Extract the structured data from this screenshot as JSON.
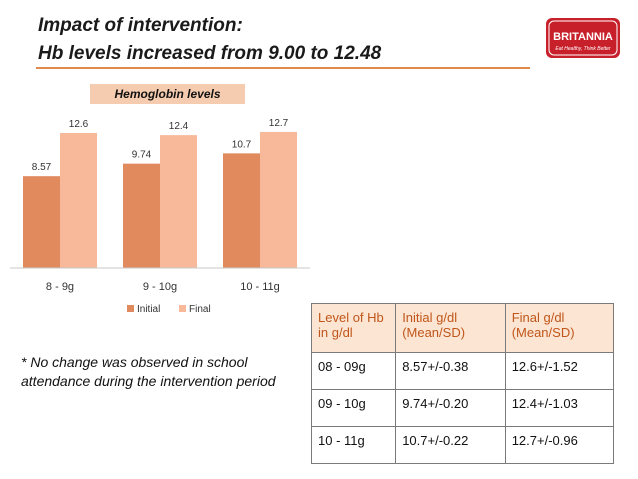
{
  "slide": {
    "title_line1": "Impact of intervention:",
    "title_line2": "Hb levels increased from 9.00 to 12.48",
    "accent_color": "#e08a4e"
  },
  "logo": {
    "brand": "BRITANNIA",
    "tagline": "Eat Healthy, Think Better",
    "color": "#c8202a"
  },
  "chart_title": "Hemoglobin levels",
  "chart_data": {
    "type": "bar",
    "categories": [
      "8 - 9g",
      "9 - 10g",
      "10 - 11g"
    ],
    "series": [
      {
        "name": "Initial",
        "color": "#e08a5e",
        "values": [
          8.57,
          9.74,
          10.7
        ],
        "labels": [
          "8.57",
          "9.74",
          "10.7"
        ]
      },
      {
        "name": "Final",
        "color": "#f8b89a",
        "values": [
          12.6,
          12.4,
          12.7
        ],
        "labels": [
          "12.6",
          "12.4",
          "12.7"
        ]
      }
    ],
    "ylim": [
      0,
      14
    ],
    "legend_position": "bottom",
    "grid": false
  },
  "note": "* No change was observed in school attendance during the intervention period",
  "table": {
    "headers": [
      "Level of Hb in g/dl",
      "Initial g/dl (Mean/SD)",
      "Final g/dl (Mean/SD)"
    ],
    "rows": [
      [
        "08 - 09g",
        "8.57+/-0.38",
        "12.6+/-1.52"
      ],
      [
        "09 - 10g",
        "9.74+/-0.20",
        "12.4+/-1.03"
      ],
      [
        "10 - 11g",
        "10.7+/-0.22",
        "12.7+/-0.96"
      ]
    ]
  }
}
